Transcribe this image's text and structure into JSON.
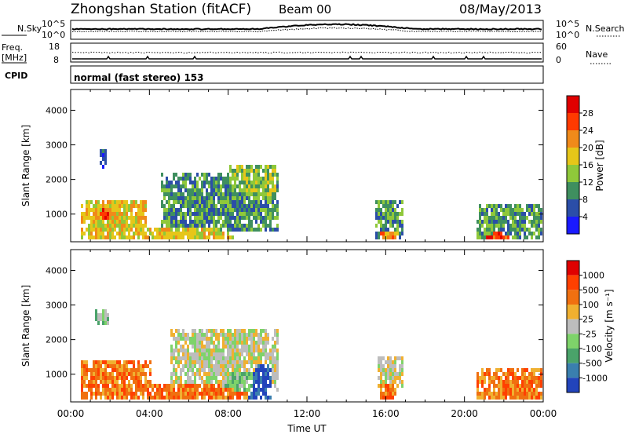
{
  "header": {
    "title": "Zhongshan Station (fitACF)",
    "beam": "Beam 00",
    "date": "08/May/2013"
  },
  "strips": {
    "nsky_label": "N.Sky",
    "nsearch_label": "N.Search",
    "nsky_ticks": [
      "10^5",
      "10^0"
    ],
    "nsearch_ticks": [
      "10^5",
      "10^0"
    ],
    "freq_label_1": "Freq.",
    "freq_label_2": "[MHz]",
    "freq_ticks": [
      "18",
      "8"
    ],
    "nave_label": "Nave",
    "nave_ticks": [
      "60",
      "0"
    ],
    "cpid_label": "CPID",
    "cpid_value": "normal (fast stereo) 153"
  },
  "chart_data": [
    {
      "type": "heatmap",
      "panel": "power",
      "ylabel": "Slant Range [km]",
      "xlabel": "",
      "yticks": [
        "1000",
        "2000",
        "3000",
        "4000"
      ],
      "ylim": [
        200,
        4600
      ],
      "colorbar_label": "Power [dB]",
      "colorbar_ticks": [
        "4",
        "8",
        "12",
        "16",
        "20",
        "24",
        "28"
      ],
      "colors": [
        "#1a1aff",
        "#2b4ea8",
        "#3f8f5f",
        "#8fc83a",
        "#e6c619",
        "#f08a1a",
        "#ff3a00",
        "#e00000"
      ],
      "blobs": [
        {
          "t0": 0.5,
          "t1": 3.8,
          "r0": 300,
          "r1": 1500,
          "level": 4
        },
        {
          "t0": 1.0,
          "t1": 2.6,
          "r0": 650,
          "r1": 1350,
          "level": 6
        },
        {
          "t0": 1.4,
          "t1": 1.8,
          "r0": 2400,
          "r1": 2900,
          "level": 1
        },
        {
          "t0": 3.0,
          "t1": 8.5,
          "r0": 250,
          "r1": 700,
          "level": 4
        },
        {
          "t0": 4.5,
          "t1": 10.5,
          "r0": 500,
          "r1": 2200,
          "level": 2
        },
        {
          "t0": 8.0,
          "t1": 10.4,
          "r0": 1300,
          "r1": 2450,
          "level": 3
        },
        {
          "t0": 15.4,
          "t1": 16.8,
          "r0": 300,
          "r1": 1500,
          "level": 2
        },
        {
          "t0": 15.6,
          "t1": 16.6,
          "r0": 200,
          "r1": 700,
          "level": 5
        },
        {
          "t0": 20.5,
          "t1": 24.0,
          "r0": 200,
          "r1": 1300,
          "level": 2
        },
        {
          "t0": 21.0,
          "t1": 22.5,
          "r0": 200,
          "r1": 600,
          "level": 6
        }
      ]
    },
    {
      "type": "heatmap",
      "panel": "velocity",
      "ylabel": "Slant Range [km]",
      "xlabel": "Time UT",
      "yticks": [
        "1000",
        "2000",
        "3000",
        "4000"
      ],
      "ylim": [
        200,
        4600
      ],
      "xticks": [
        "00:00",
        "04:00",
        "08:00",
        "12:00",
        "16:00",
        "20:00",
        "00:00"
      ],
      "xlim": [
        0,
        24
      ],
      "colorbar_label": "Velocity [m s⁻¹]",
      "colorbar_ticks": [
        "1000",
        "500",
        "100",
        "25",
        "-25",
        "-100",
        "-500",
        "-1000"
      ],
      "colors": [
        "#2244bb",
        "#3a7fae",
        "#4aa36a",
        "#7ed36a",
        "#bdbdbd",
        "#f0b030",
        "#f07010",
        "#ff4000",
        "#e00000"
      ],
      "blobs": [
        {
          "t0": 0.5,
          "t1": 4.0,
          "r0": 300,
          "r1": 1500,
          "level": 6
        },
        {
          "t0": 1.2,
          "t1": 1.9,
          "r0": 2500,
          "r1": 2900,
          "level": 3
        },
        {
          "t0": 3.0,
          "t1": 9.0,
          "r0": 250,
          "r1": 800,
          "level": 6
        },
        {
          "t0": 5.0,
          "t1": 10.5,
          "r0": 600,
          "r1": 2400,
          "level": 4
        },
        {
          "t0": 7.5,
          "t1": 9.5,
          "r0": 500,
          "r1": 1400,
          "level": 3
        },
        {
          "t0": 9.0,
          "t1": 10.2,
          "r0": 300,
          "r1": 1600,
          "level": 0
        },
        {
          "t0": 15.5,
          "t1": 16.8,
          "r0": 700,
          "r1": 1600,
          "level": 4
        },
        {
          "t0": 15.6,
          "t1": 16.5,
          "r0": 200,
          "r1": 800,
          "level": 6
        },
        {
          "t0": 20.5,
          "t1": 24.0,
          "r0": 200,
          "r1": 1200,
          "level": 6
        }
      ]
    }
  ]
}
